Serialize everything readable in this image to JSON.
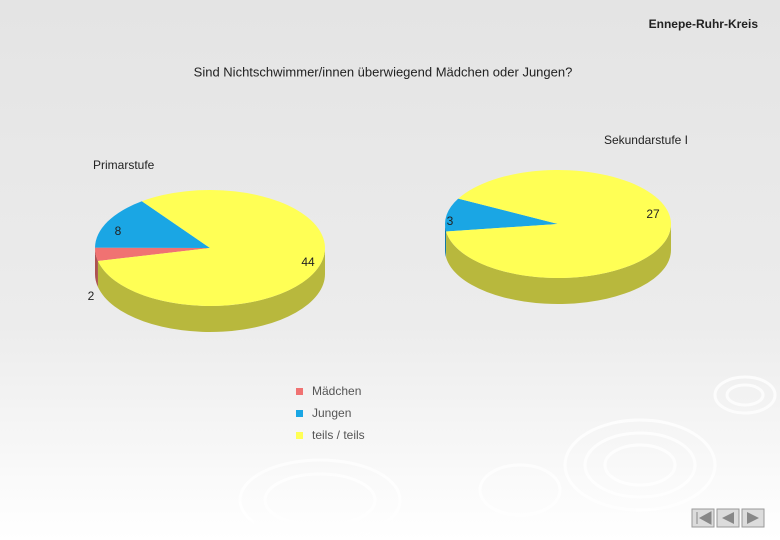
{
  "header": "Ennepe-Ruhr-Kreis",
  "title": "Sind Nichtschwimmer/innen überwiegend Mädchen oder Jungen?",
  "chart_data": [
    {
      "type": "pie",
      "title": "Primarstufe",
      "categories": [
        "Mädchen",
        "Jungen",
        "teils / teils"
      ],
      "values": [
        2,
        8,
        44
      ],
      "colors": [
        "#f07272",
        "#1aa6e4",
        "#ffff55"
      ]
    },
    {
      "type": "pie",
      "title": "Sekundarstufe I",
      "values": [
        3,
        27
      ],
      "colors": [
        "#1aa6e4",
        "#ffff55"
      ]
    }
  ]
}
